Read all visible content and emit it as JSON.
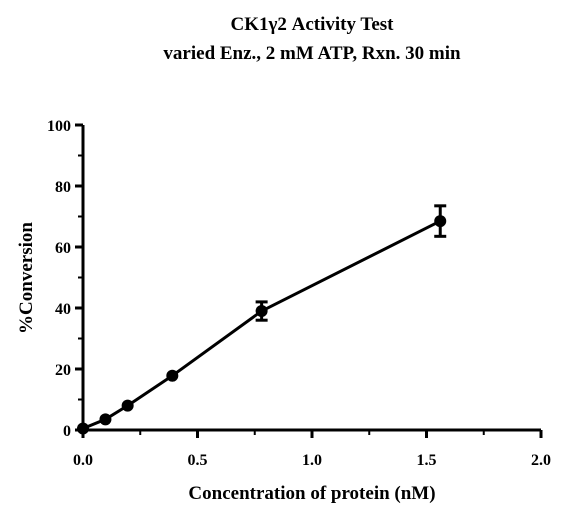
{
  "chart_data": {
    "type": "scatter",
    "title": "CK1γ2 Activity Test",
    "subtitle": "varied Enz., 2 mM ATP, Rxn. 30 min",
    "xlabel": "Concentration of protein (nM)",
    "ylabel": "%Conversion",
    "xlim": [
      0,
      2.0
    ],
    "ylim": [
      0,
      100
    ],
    "x_ticks": [
      "0.0",
      "0.5",
      "1.0",
      "1.5",
      "2.0"
    ],
    "y_ticks": [
      "0",
      "20",
      "40",
      "60",
      "80",
      "100"
    ],
    "grid": false,
    "connected": true,
    "series": [
      {
        "x": [
          0.0,
          0.098,
          0.195,
          0.39,
          0.78,
          1.56
        ],
        "y": [
          0.5,
          3.5,
          8.0,
          17.8,
          39.0,
          68.5
        ],
        "error": [
          0.4,
          0.6,
          0.6,
          0.8,
          3.0,
          5.0
        ]
      }
    ],
    "marker_color": "#000000"
  }
}
